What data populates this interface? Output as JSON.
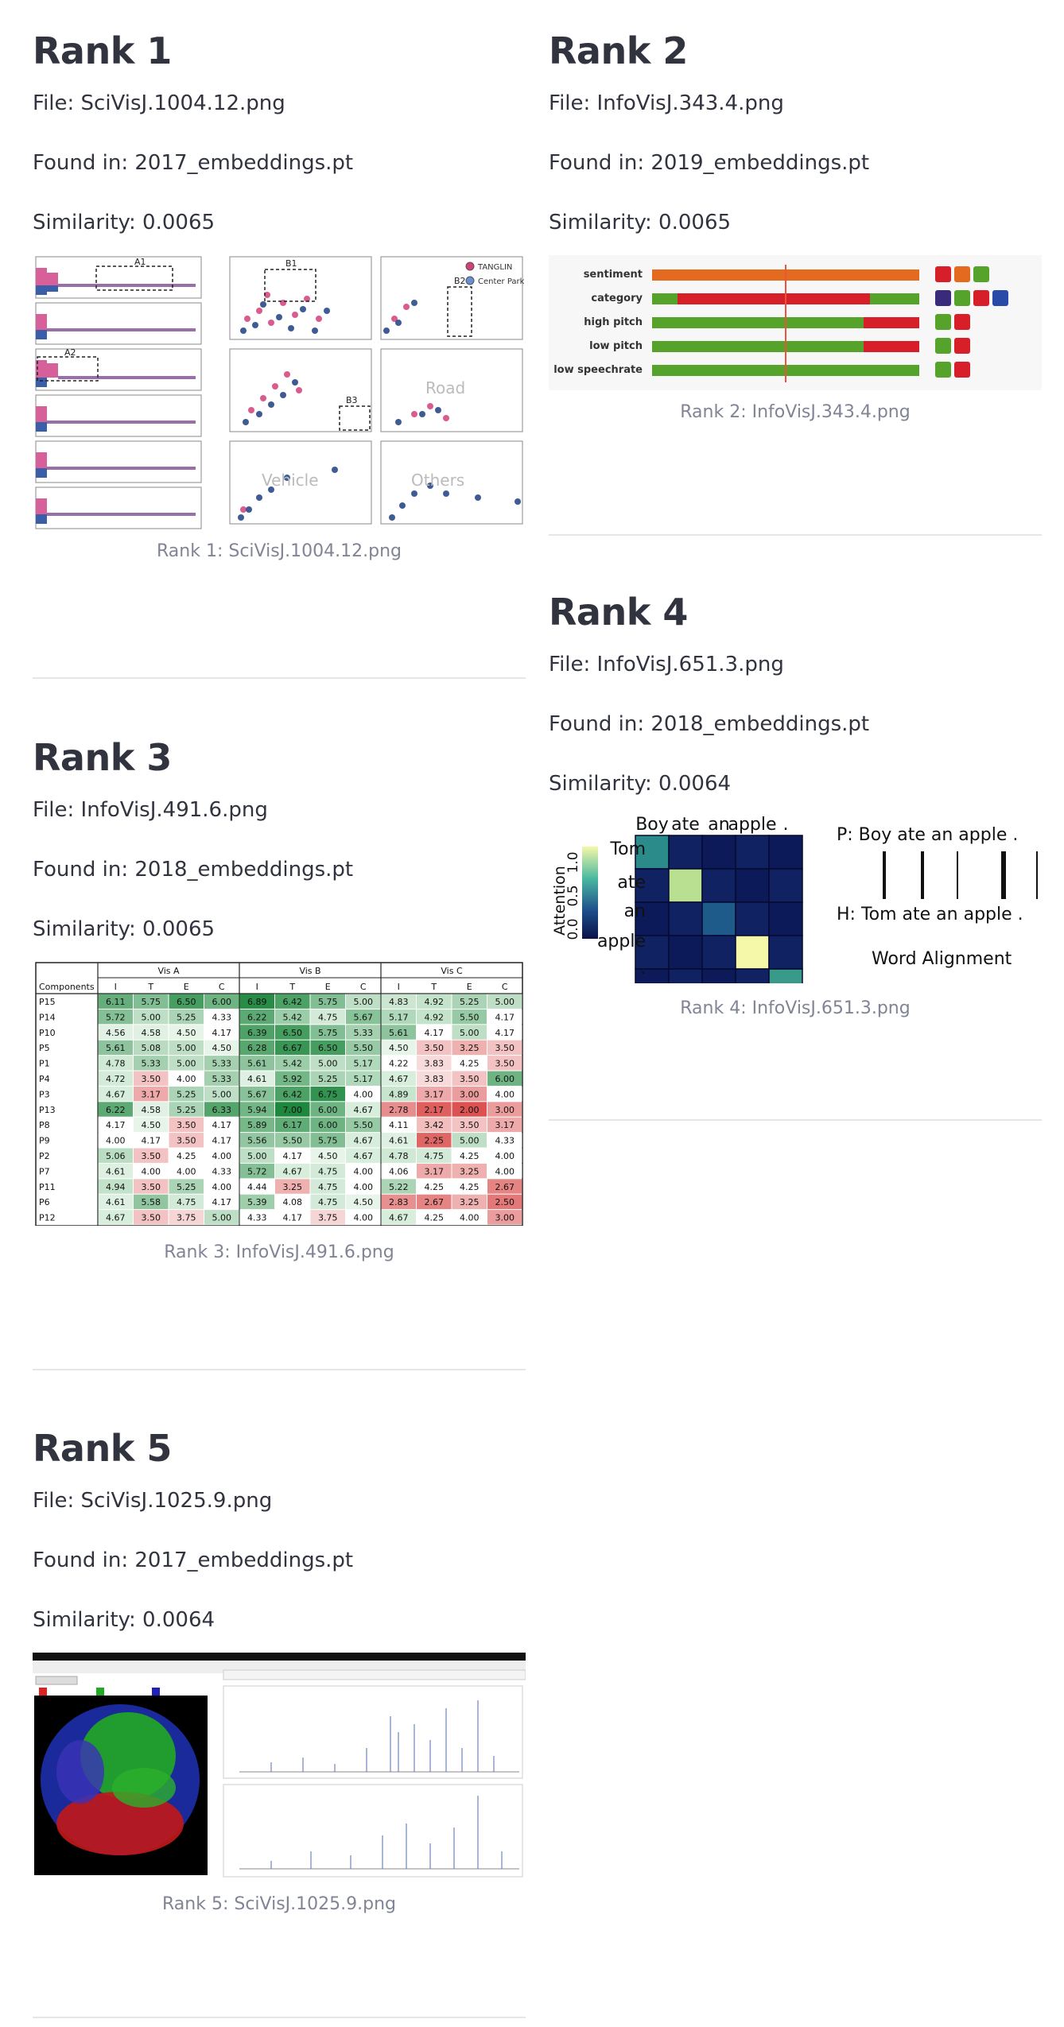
{
  "results": [
    {
      "title": "Rank 1",
      "file": "File: SciVisJ.1004.12.png",
      "found": "Found in: 2017_embeddings.pt",
      "similarity": "Similarity: 0.0065",
      "caption": "Rank 1: SciVisJ.1004.12.png",
      "image_text": {
        "a1": "A1",
        "a2": "A2",
        "b1": "B1",
        "b2": "B2",
        "b3": "B3",
        "legend1": "TANGLIN",
        "legend2": "Center Park",
        "road": "Road",
        "vehicle": "Vehicle",
        "others": "Others"
      }
    },
    {
      "title": "Rank 2",
      "file": "File: InfoVisJ.343.4.png",
      "found": "Found in: 2019_embeddings.pt",
      "similarity": "Similarity: 0.0065",
      "caption": "Rank 2: InfoVisJ.343.4.png",
      "image_text": {
        "rows": [
          "sentiment",
          "category",
          "high pitch",
          "low pitch",
          "low speechrate"
        ]
      }
    },
    {
      "title": "Rank 3",
      "file": "File: InfoVisJ.491.6.png",
      "found": "Found in: 2018_embeddings.pt",
      "similarity": "Similarity: 0.0065",
      "caption": "Rank 3: InfoVisJ.491.6.png",
      "image_text": {
        "groups": [
          "Vis A",
          "Vis B",
          "Vis C"
        ],
        "components_label": "Components",
        "subcols": [
          "I",
          "T",
          "E",
          "C"
        ],
        "rows": [
          {
            "p": "P15",
            "v": [
              "6.11",
              "5.75",
              "6.50",
              "6.00",
              "6.89",
              "6.42",
              "5.75",
              "5.00",
              "4.83",
              "4.92",
              "5.25",
              "5.00"
            ]
          },
          {
            "p": "P14",
            "v": [
              "5.72",
              "5.00",
              "5.25",
              "4.33",
              "6.22",
              "5.42",
              "4.75",
              "5.67",
              "5.17",
              "4.92",
              "5.50",
              "4.17"
            ]
          },
          {
            "p": "P10",
            "v": [
              "4.56",
              "4.58",
              "4.50",
              "4.17",
              "6.39",
              "6.50",
              "5.75",
              "5.33",
              "5.61",
              "4.17",
              "5.00",
              "4.17"
            ]
          },
          {
            "p": "P5",
            "v": [
              "5.61",
              "5.08",
              "5.00",
              "4.50",
              "6.28",
              "6.67",
              "6.50",
              "5.50",
              "4.50",
              "3.50",
              "3.25",
              "3.50"
            ]
          },
          {
            "p": "P1",
            "v": [
              "4.78",
              "5.33",
              "5.00",
              "5.33",
              "5.61",
              "5.42",
              "5.00",
              "5.17",
              "4.22",
              "3.83",
              "4.25",
              "3.50"
            ]
          },
          {
            "p": "P4",
            "v": [
              "4.72",
              "3.50",
              "4.00",
              "5.33",
              "4.61",
              "5.92",
              "5.25",
              "5.17",
              "4.67",
              "3.83",
              "3.50",
              "6.00"
            ]
          },
          {
            "p": "P3",
            "v": [
              "4.67",
              "3.17",
              "5.25",
              "5.00",
              "5.67",
              "6.42",
              "6.75",
              "4.00",
              "4.89",
              "3.17",
              "3.00",
              "4.00"
            ]
          },
          {
            "p": "P13",
            "v": [
              "6.22",
              "4.58",
              "5.25",
              "6.33",
              "5.94",
              "7.00",
              "6.00",
              "4.67",
              "2.78",
              "2.17",
              "2.00",
              "3.00"
            ]
          },
          {
            "p": "P8",
            "v": [
              "4.17",
              "4.50",
              "3.50",
              "4.17",
              "5.89",
              "6.17",
              "6.00",
              "5.50",
              "4.11",
              "3.42",
              "3.50",
              "3.17"
            ]
          },
          {
            "p": "P9",
            "v": [
              "4.00",
              "4.17",
              "3.50",
              "4.17",
              "5.56",
              "5.50",
              "5.75",
              "4.67",
              "4.61",
              "2.25",
              "5.00",
              "4.33"
            ]
          },
          {
            "p": "P2",
            "v": [
              "5.06",
              "3.50",
              "4.25",
              "4.00",
              "5.00",
              "4.17",
              "4.50",
              "4.67",
              "4.78",
              "4.75",
              "4.25",
              "4.00"
            ]
          },
          {
            "p": "P7",
            "v": [
              "4.61",
              "4.00",
              "4.00",
              "4.33",
              "5.72",
              "4.67",
              "4.75",
              "4.00",
              "4.06",
              "3.17",
              "3.25",
              "4.00"
            ]
          },
          {
            "p": "P11",
            "v": [
              "4.94",
              "3.50",
              "5.25",
              "4.00",
              "4.44",
              "3.25",
              "4.75",
              "4.00",
              "5.22",
              "4.25",
              "4.25",
              "2.67"
            ]
          },
          {
            "p": "P6",
            "v": [
              "4.61",
              "5.58",
              "4.75",
              "4.17",
              "5.39",
              "4.08",
              "4.75",
              "4.50",
              "2.83",
              "2.67",
              "3.25",
              "2.50"
            ]
          },
          {
            "p": "P12",
            "v": [
              "4.67",
              "3.50",
              "3.75",
              "5.00",
              "4.33",
              "4.17",
              "3.75",
              "4.00",
              "4.67",
              "4.25",
              "4.00",
              "3.00"
            ]
          }
        ]
      }
    },
    {
      "title": "Rank 4",
      "file": "File: InfoVisJ.651.3.png",
      "found": "Found in: 2018_embeddings.pt",
      "similarity": "Similarity: 0.0064",
      "caption": "Rank 4: InfoVisJ.651.3.png",
      "image_text": {
        "cols": [
          "Boy",
          "ate",
          "an",
          "apple",
          "."
        ],
        "rows": [
          "Tom",
          "ate",
          "an",
          "apple",
          "."
        ],
        "ylabel": "Attention",
        "ticks": [
          "1.0",
          "0.5",
          "0.0"
        ],
        "premise": "P: Boy ate an apple .",
        "hypothesis": "H: Tom ate an apple .",
        "alignment": "Word Alignment"
      }
    },
    {
      "title": "Rank 5",
      "file": "File: SciVisJ.1025.9.png",
      "found": "Found in: 2017_embeddings.pt",
      "similarity": "Similarity: 0.0064",
      "caption": "Rank 5: SciVisJ.1025.9.png",
      "image_text": {}
    }
  ]
}
